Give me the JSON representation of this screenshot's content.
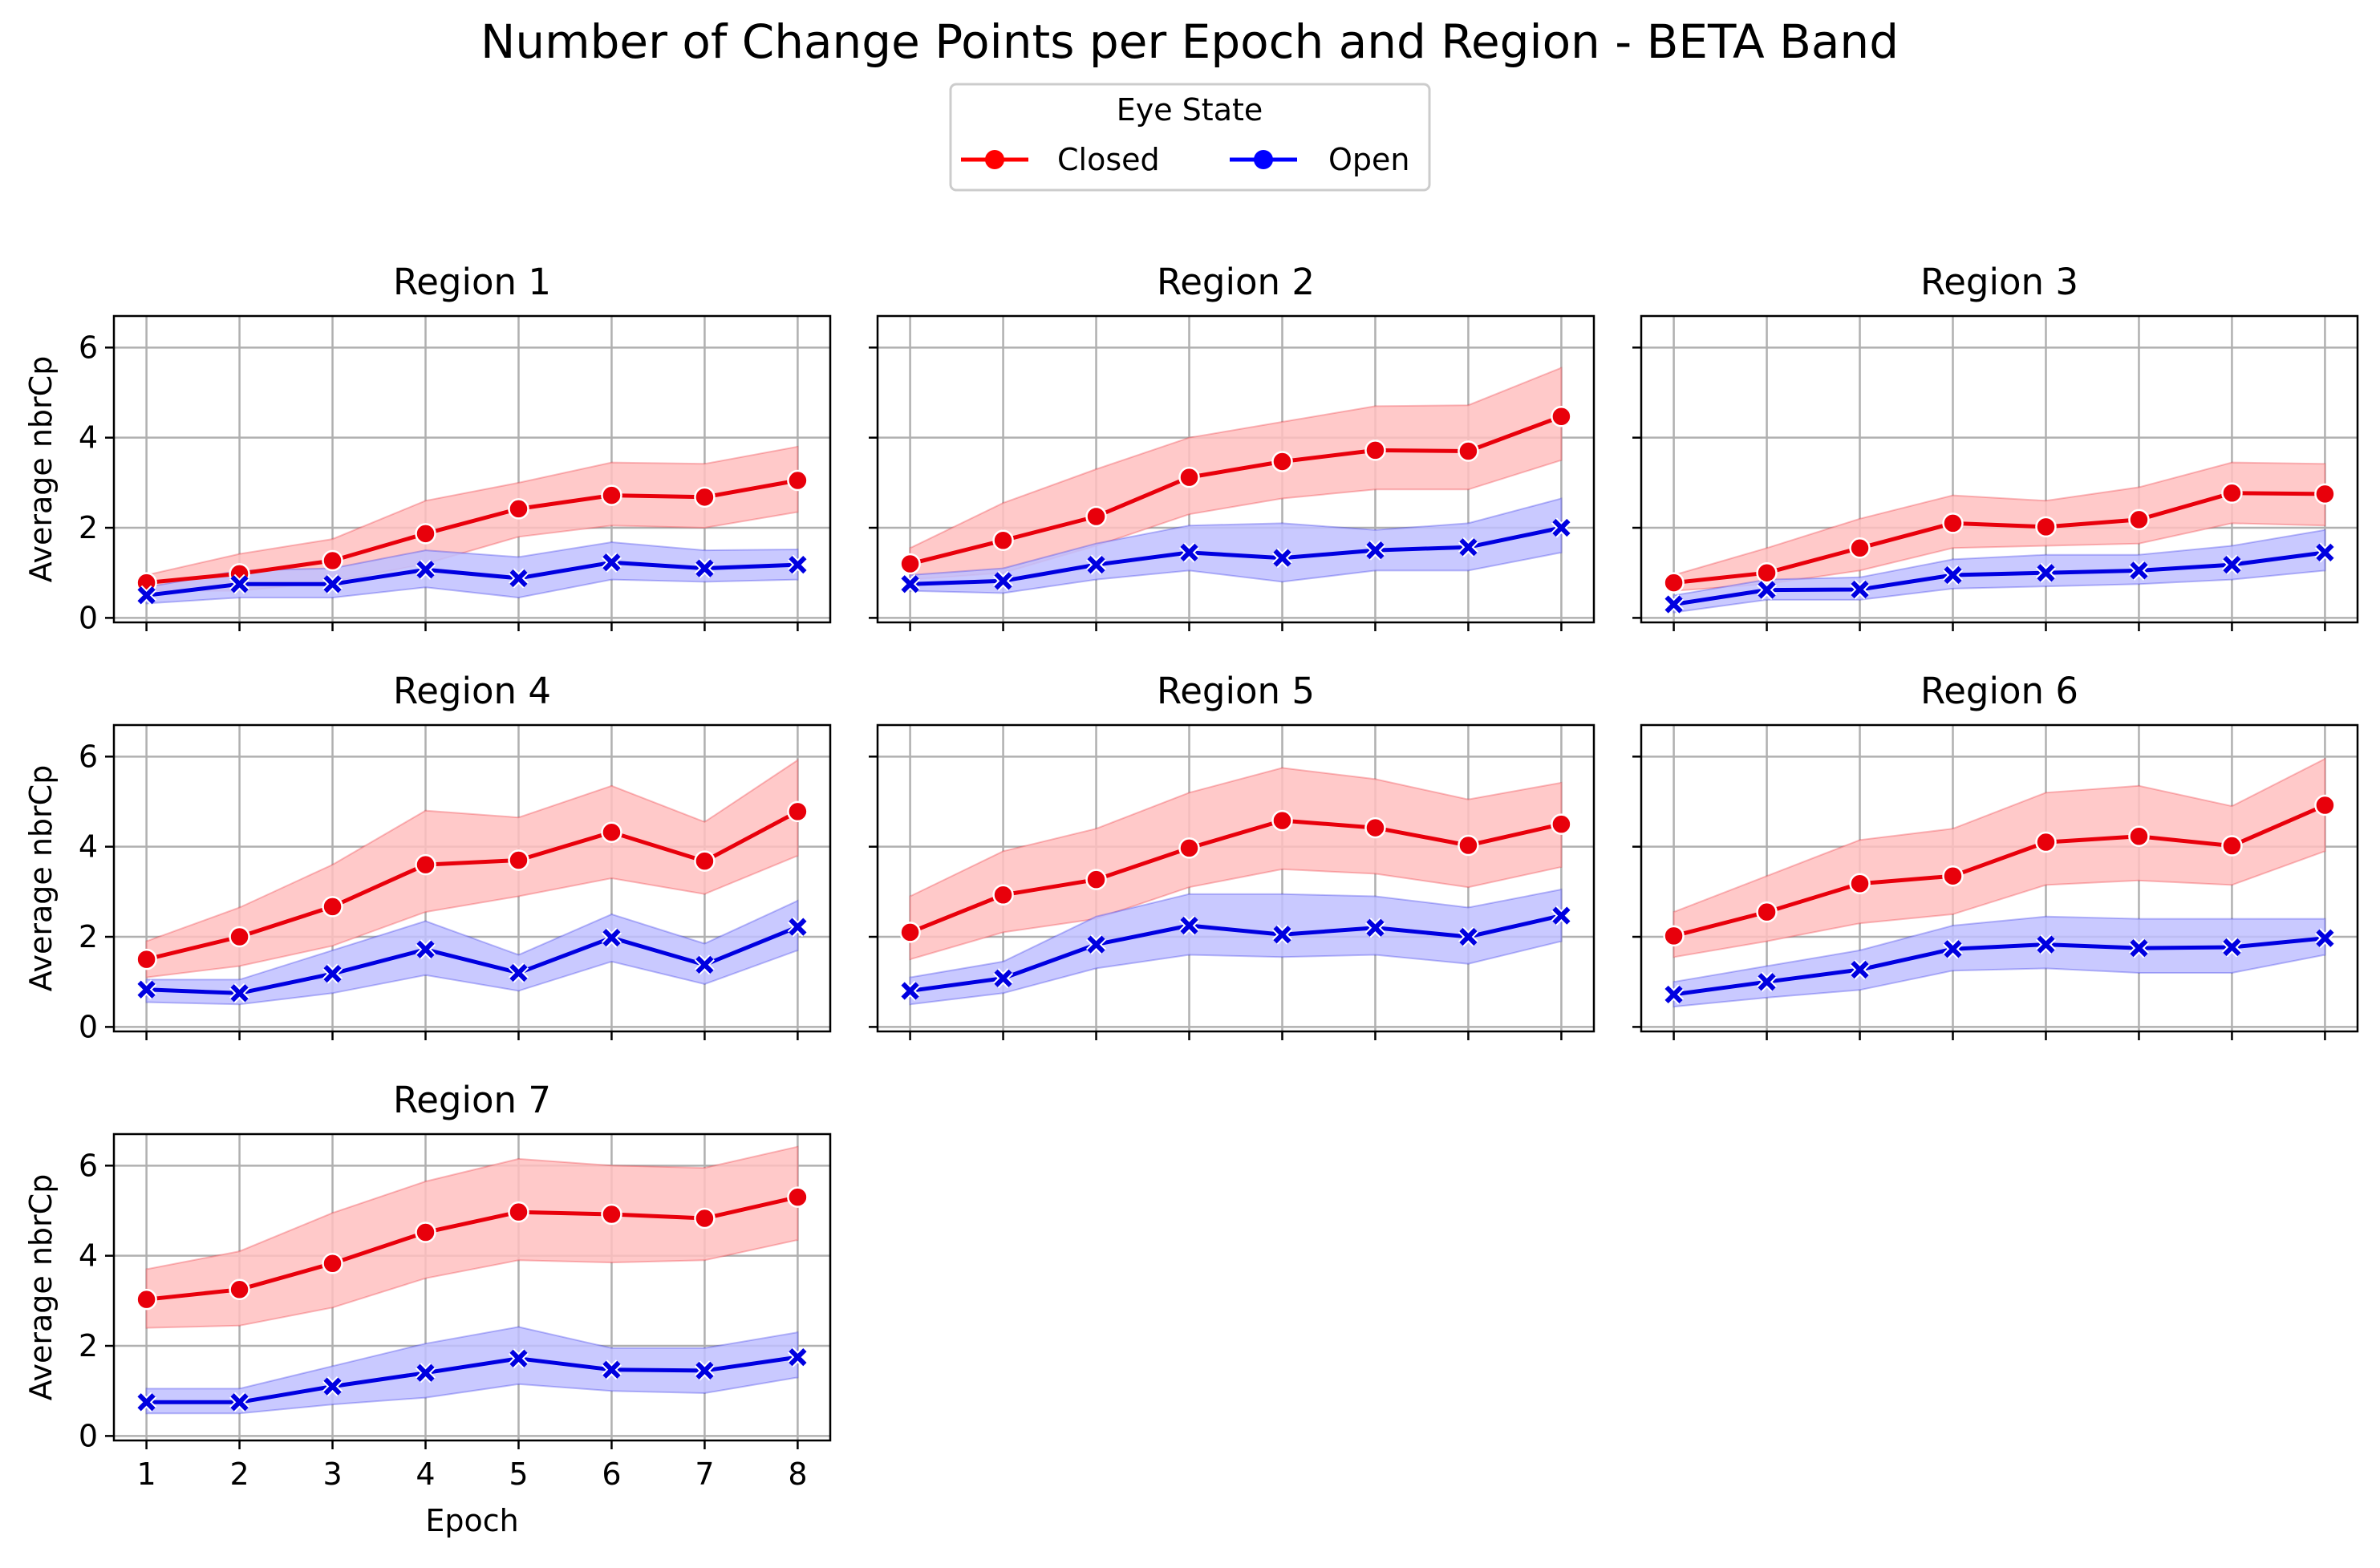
{
  "title": "Number of Change Points per Epoch and Region - BETA Band",
  "legend": {
    "title": "Eye State",
    "entries": [
      {
        "label": "Closed",
        "color": "#ff0000",
        "marker": "circle"
      },
      {
        "label": "Open",
        "color": "#0000ff",
        "marker": "cross"
      }
    ],
    "placement": "top-center"
  },
  "colors": {
    "closed_line": "#e8000b",
    "closed_band": "#ffbfbf",
    "open_line": "#0000e0",
    "open_band": "#bfbfff",
    "grid": "#b0b0b0"
  },
  "chart_data": [
    {
      "type": "line",
      "title": "Region 1",
      "xlabel": "",
      "ylabel": "Average nbrCp",
      "x": [
        1,
        2,
        3,
        4,
        5,
        6,
        7,
        8
      ],
      "ylim": [
        -0.1,
        6.7
      ],
      "yticks": [
        0,
        2,
        4,
        6
      ],
      "grid": true,
      "series": [
        {
          "name": "Closed",
          "values": [
            0.78,
            0.98,
            1.27,
            1.87,
            2.42,
            2.72,
            2.68,
            3.05
          ],
          "lower": [
            0.6,
            0.6,
            0.8,
            1.2,
            1.8,
            2.05,
            2.0,
            2.35
          ],
          "upper": [
            0.95,
            1.42,
            1.75,
            2.6,
            3.0,
            3.45,
            3.42,
            3.8
          ]
        },
        {
          "name": "Open",
          "values": [
            0.5,
            0.75,
            0.75,
            1.07,
            0.88,
            1.23,
            1.1,
            1.18
          ],
          "lower": [
            0.32,
            0.45,
            0.45,
            0.68,
            0.45,
            0.85,
            0.8,
            0.85
          ],
          "upper": [
            0.68,
            1.05,
            1.1,
            1.5,
            1.35,
            1.68,
            1.5,
            1.52
          ]
        }
      ]
    },
    {
      "type": "line",
      "title": "Region 2",
      "xlabel": "",
      "ylabel": "",
      "x": [
        1,
        2,
        3,
        4,
        5,
        6,
        7,
        8
      ],
      "ylim": [
        -0.1,
        6.7
      ],
      "yticks": [
        0,
        2,
        4,
        6
      ],
      "grid": true,
      "series": [
        {
          "name": "Closed",
          "values": [
            1.2,
            1.72,
            2.25,
            3.12,
            3.47,
            3.72,
            3.7,
            4.47
          ],
          "lower": [
            0.85,
            1.0,
            1.6,
            2.3,
            2.65,
            2.85,
            2.85,
            3.5
          ],
          "upper": [
            1.55,
            2.55,
            3.3,
            4.0,
            4.35,
            4.7,
            4.72,
            5.55
          ]
        },
        {
          "name": "Open",
          "values": [
            0.75,
            0.82,
            1.18,
            1.45,
            1.33,
            1.5,
            1.57,
            2.0
          ],
          "lower": [
            0.6,
            0.55,
            0.85,
            1.05,
            0.8,
            1.05,
            1.05,
            1.45
          ],
          "upper": [
            0.95,
            1.1,
            1.65,
            2.05,
            2.1,
            1.95,
            2.1,
            2.65
          ]
        }
      ]
    },
    {
      "type": "line",
      "title": "Region 3",
      "xlabel": "",
      "ylabel": "",
      "x": [
        1,
        2,
        3,
        4,
        5,
        6,
        7,
        8
      ],
      "ylim": [
        -0.1,
        6.7
      ],
      "yticks": [
        0,
        2,
        4,
        6
      ],
      "grid": true,
      "series": [
        {
          "name": "Closed",
          "values": [
            0.78,
            1.0,
            1.55,
            2.1,
            2.02,
            2.18,
            2.77,
            2.75
          ],
          "lower": [
            0.6,
            0.75,
            1.05,
            1.55,
            1.6,
            1.65,
            2.1,
            2.05
          ],
          "upper": [
            0.95,
            1.55,
            2.2,
            2.72,
            2.6,
            2.9,
            3.45,
            3.42
          ]
        },
        {
          "name": "Open",
          "values": [
            0.3,
            0.62,
            0.63,
            0.95,
            1.0,
            1.05,
            1.18,
            1.45
          ],
          "lower": [
            0.12,
            0.4,
            0.4,
            0.65,
            0.7,
            0.75,
            0.85,
            1.05
          ],
          "upper": [
            0.5,
            0.85,
            0.9,
            1.3,
            1.4,
            1.4,
            1.6,
            1.95
          ]
        }
      ]
    },
    {
      "type": "line",
      "title": "Region 4",
      "xlabel": "",
      "ylabel": "Average nbrCp",
      "x": [
        1,
        2,
        3,
        4,
        5,
        6,
        7,
        8
      ],
      "ylim": [
        -0.1,
        6.7
      ],
      "yticks": [
        0,
        2,
        4,
        6
      ],
      "grid": true,
      "series": [
        {
          "name": "Closed",
          "values": [
            1.5,
            2.0,
            2.67,
            3.6,
            3.7,
            4.32,
            3.68,
            4.78
          ],
          "lower": [
            1.1,
            1.35,
            1.8,
            2.55,
            2.9,
            3.3,
            2.95,
            3.8
          ],
          "upper": [
            1.9,
            2.65,
            3.6,
            4.8,
            4.65,
            5.35,
            4.55,
            5.92
          ]
        },
        {
          "name": "Open",
          "values": [
            0.83,
            0.75,
            1.18,
            1.72,
            1.2,
            1.98,
            1.38,
            2.22
          ],
          "lower": [
            0.55,
            0.5,
            0.75,
            1.15,
            0.8,
            1.45,
            0.95,
            1.7
          ],
          "upper": [
            1.05,
            1.05,
            1.7,
            2.35,
            1.6,
            2.5,
            1.85,
            2.8
          ]
        }
      ]
    },
    {
      "type": "line",
      "title": "Region 5",
      "xlabel": "",
      "ylabel": "",
      "x": [
        1,
        2,
        3,
        4,
        5,
        6,
        7,
        8
      ],
      "ylim": [
        -0.1,
        6.7
      ],
      "yticks": [
        0,
        2,
        4,
        6
      ],
      "grid": true,
      "series": [
        {
          "name": "Closed",
          "values": [
            2.1,
            2.93,
            3.27,
            3.97,
            4.58,
            4.42,
            4.03,
            4.5
          ],
          "lower": [
            1.5,
            2.1,
            2.4,
            3.1,
            3.5,
            3.4,
            3.1,
            3.55
          ],
          "upper": [
            2.9,
            3.9,
            4.4,
            5.2,
            5.75,
            5.5,
            5.05,
            5.42
          ]
        },
        {
          "name": "Open",
          "values": [
            0.8,
            1.08,
            1.83,
            2.25,
            2.05,
            2.2,
            2.0,
            2.47
          ],
          "lower": [
            0.5,
            0.75,
            1.3,
            1.6,
            1.55,
            1.6,
            1.4,
            1.9
          ],
          "upper": [
            1.1,
            1.45,
            2.45,
            2.95,
            2.95,
            2.9,
            2.65,
            3.05
          ]
        }
      ]
    },
    {
      "type": "line",
      "title": "Region 6",
      "xlabel": "",
      "ylabel": "",
      "x": [
        1,
        2,
        3,
        4,
        5,
        6,
        7,
        8
      ],
      "ylim": [
        -0.1,
        6.7
      ],
      "yticks": [
        0,
        2,
        4,
        6
      ],
      "grid": true,
      "series": [
        {
          "name": "Closed",
          "values": [
            2.02,
            2.55,
            3.18,
            3.35,
            4.1,
            4.23,
            4.02,
            4.92
          ],
          "lower": [
            1.55,
            1.9,
            2.3,
            2.5,
            3.15,
            3.25,
            3.15,
            3.9
          ],
          "upper": [
            2.55,
            3.35,
            4.15,
            4.4,
            5.2,
            5.35,
            4.9,
            5.95
          ]
        },
        {
          "name": "Open",
          "values": [
            0.72,
            1.0,
            1.27,
            1.73,
            1.83,
            1.75,
            1.77,
            1.97
          ],
          "lower": [
            0.45,
            0.65,
            0.82,
            1.25,
            1.3,
            1.2,
            1.2,
            1.6
          ],
          "upper": [
            1.0,
            1.35,
            1.7,
            2.25,
            2.45,
            2.4,
            2.4,
            2.4
          ]
        }
      ]
    },
    {
      "type": "line",
      "title": "Region 7",
      "xlabel": "Epoch",
      "ylabel": "Average nbrCp",
      "x": [
        1,
        2,
        3,
        4,
        5,
        6,
        7,
        8
      ],
      "ylim": [
        -0.1,
        6.7
      ],
      "yticks": [
        0,
        2,
        4,
        6
      ],
      "grid": true,
      "series": [
        {
          "name": "Closed",
          "values": [
            3.03,
            3.25,
            3.83,
            4.52,
            4.97,
            4.92,
            4.83,
            5.3
          ],
          "lower": [
            2.4,
            2.45,
            2.85,
            3.5,
            3.9,
            3.85,
            3.9,
            4.35
          ],
          "upper": [
            3.7,
            4.1,
            4.95,
            5.65,
            6.15,
            6.0,
            5.95,
            6.42
          ]
        },
        {
          "name": "Open",
          "values": [
            0.75,
            0.75,
            1.1,
            1.4,
            1.72,
            1.47,
            1.45,
            1.75
          ],
          "lower": [
            0.5,
            0.5,
            0.7,
            0.85,
            1.15,
            1.0,
            0.95,
            1.3
          ],
          "upper": [
            1.05,
            1.05,
            1.55,
            2.05,
            2.42,
            1.95,
            1.95,
            2.3
          ]
        }
      ]
    }
  ]
}
